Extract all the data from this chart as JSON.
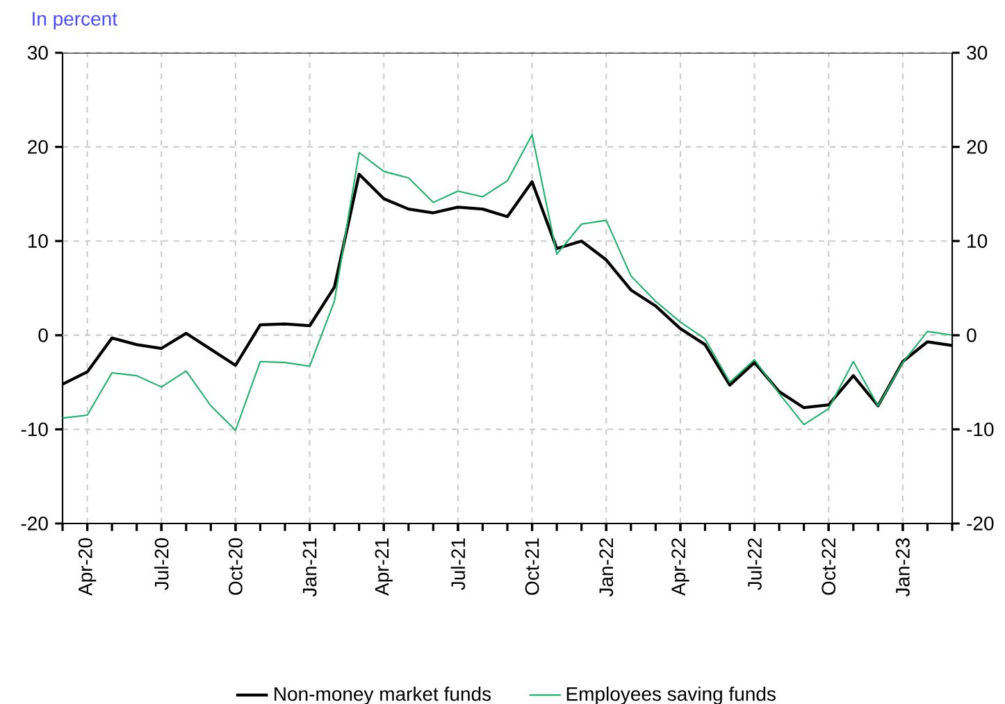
{
  "chart_data": {
    "type": "line",
    "title": "In percent",
    "categories": [
      null,
      "Apr-20",
      null,
      null,
      "Jul-20",
      null,
      null,
      "Oct-20",
      null,
      null,
      "Jan-21",
      null,
      null,
      "Apr-21",
      null,
      null,
      "Jul-21",
      null,
      null,
      "Oct-21",
      null,
      null,
      "Jan-22",
      null,
      null,
      "Apr-22",
      null,
      null,
      "Jul-22",
      null,
      null,
      "Oct-22",
      null,
      null,
      "Jan-23",
      null,
      null
    ],
    "series": [
      {
        "name": "Non-money market funds",
        "color": "#000000",
        "values": [
          -5.2,
          -3.9,
          -0.3,
          -1.0,
          -1.4,
          0.2,
          -1.5,
          -3.2,
          1.1,
          1.2,
          1.0,
          5.1,
          17.1,
          14.5,
          13.4,
          13.0,
          13.6,
          13.4,
          12.6,
          16.3,
          9.2,
          10.0,
          8.0,
          4.8,
          3.1,
          0.7,
          -1.0,
          -5.3,
          -2.9,
          -6.0,
          -7.7,
          -7.4,
          -4.3,
          -7.5,
          -2.8,
          -0.7,
          -1.1
        ]
      },
      {
        "name": "Employees saving funds",
        "color": "#1db36b",
        "values": [
          -8.8,
          -8.5,
          -4.0,
          -4.3,
          -5.5,
          -3.8,
          -7.5,
          -10.1,
          -2.8,
          -2.9,
          -3.3,
          3.6,
          19.4,
          17.4,
          16.7,
          14.1,
          15.3,
          14.7,
          16.4,
          21.3,
          8.6,
          11.8,
          12.2,
          6.3,
          3.6,
          1.4,
          -0.4,
          -5.0,
          -2.6,
          -6.2,
          -9.5,
          -7.8,
          -2.8,
          -7.5,
          -2.9,
          0.4,
          0.0
        ]
      }
    ],
    "ylim": [
      -20,
      30
    ],
    "yticks": [
      -20,
      -10,
      0,
      10,
      20,
      30
    ],
    "y2lim": [
      -20,
      30
    ],
    "y2ticks": [
      -20,
      -10,
      0,
      10,
      20,
      30
    ],
    "grid": true,
    "legend": "bottom",
    "line_style": "solid",
    "marker": "none"
  }
}
